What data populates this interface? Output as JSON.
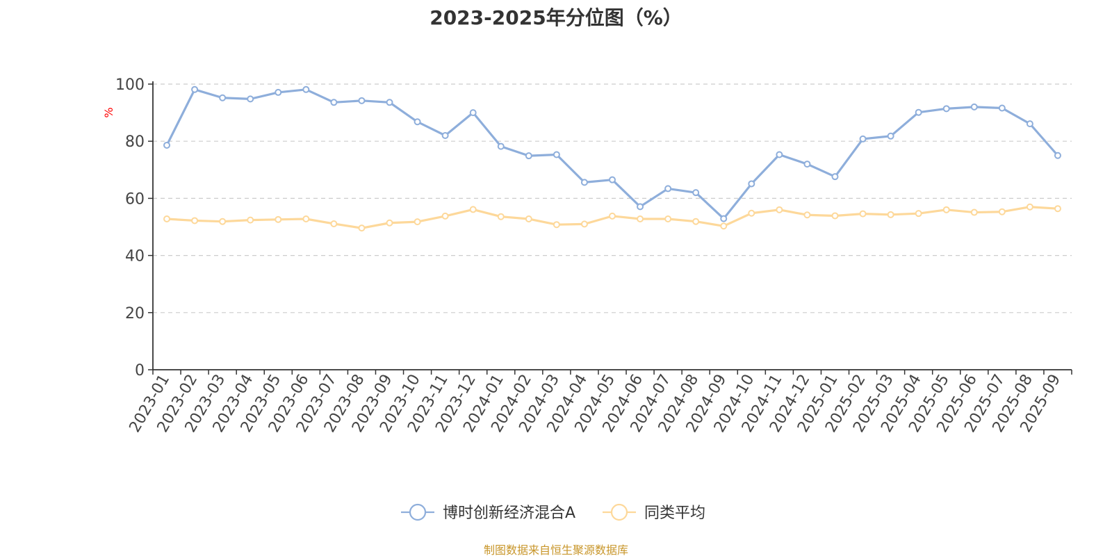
{
  "colors": {
    "series_1": "#8eaedb",
    "series_2": "#fdd89a",
    "grid": "#cccccc",
    "axis": "#333333",
    "ylabel": "#ff0000",
    "source": "#c8962a"
  },
  "source_text": "制图数据来自恒生聚源数据库",
  "chart_data": {
    "type": "line",
    "title": "2023-2025年分位图（%）",
    "ylabel": "%",
    "xlabel": "",
    "ylim": [
      0,
      100
    ],
    "yticks": [
      0,
      20,
      40,
      60,
      80,
      100
    ],
    "grid": true,
    "legend_position": "bottom-center",
    "categories": [
      "2023-01",
      "2023-02",
      "2023-03",
      "2023-04",
      "2023-05",
      "2023-06",
      "2023-07",
      "2023-08",
      "2023-09",
      "2023-10",
      "2023-11",
      "2023-12",
      "2024-01",
      "2024-02",
      "2024-03",
      "2024-04",
      "2024-05",
      "2024-06",
      "2024-07",
      "2024-08",
      "2024-09",
      "2024-10",
      "2024-11",
      "2024-12",
      "2025-01",
      "2025-02",
      "2025-03",
      "2025-04",
      "2025-05",
      "2025-06",
      "2025-07",
      "2025-08",
      "2025-09"
    ],
    "series": [
      {
        "name": "博时创新经济混合A",
        "values": [
          78.6,
          98.1,
          95.2,
          94.8,
          97.1,
          98.1,
          93.6,
          94.2,
          93.6,
          86.8,
          82.0,
          90.0,
          78.2,
          74.9,
          75.3,
          65.6,
          66.5,
          57.1,
          63.4,
          62.0,
          52.9,
          65.1,
          75.3,
          72.0,
          67.6,
          80.8,
          81.8,
          90.1,
          91.4,
          92.0,
          91.6,
          86.1,
          75.0
        ]
      },
      {
        "name": "同类平均",
        "values": [
          52.8,
          52.2,
          51.9,
          52.4,
          52.6,
          52.8,
          51.1,
          49.6,
          51.4,
          51.8,
          53.8,
          56.1,
          53.6,
          52.8,
          50.8,
          51.0,
          53.8,
          52.8,
          52.8,
          51.9,
          50.3,
          54.8,
          56.0,
          54.2,
          53.9,
          54.6,
          54.3,
          54.7,
          56.0,
          55.1,
          55.3,
          57.0,
          56.4
        ]
      }
    ]
  }
}
